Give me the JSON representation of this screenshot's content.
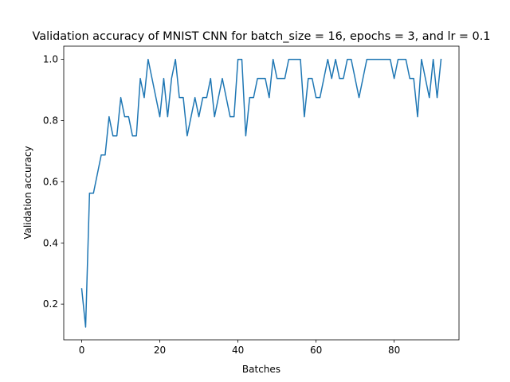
{
  "chart_data": {
    "type": "line",
    "title": "Validation accuracy of MNIST CNN for batch_size = 16, epochs = 3, and lr = 0.1",
    "xlabel": "Batches",
    "ylabel": "Validation accuracy",
    "xlim": [
      -4.6,
      96.6
    ],
    "ylim": [
      0.0833,
      1.0432
    ],
    "xticks": [
      0,
      20,
      40,
      60,
      80
    ],
    "yticks": [
      0.2,
      0.4,
      0.6,
      0.8,
      1.0
    ],
    "xtick_labels": [
      "0",
      "20",
      "40",
      "60",
      "80"
    ],
    "ytick_labels": [
      "0.2",
      "0.4",
      "0.6",
      "0.8",
      "1.0"
    ],
    "grid": false,
    "series": [
      {
        "color": "#1f77b4",
        "x": [
          0,
          1,
          2,
          3,
          4,
          5,
          6,
          7,
          8,
          9,
          10,
          11,
          12,
          13,
          14,
          15,
          16,
          17,
          18,
          19,
          20,
          21,
          22,
          23,
          24,
          25,
          26,
          27,
          28,
          29,
          30,
          31,
          32,
          33,
          34,
          35,
          36,
          37,
          38,
          39,
          40,
          41,
          42,
          43,
          44,
          45,
          46,
          47,
          48,
          49,
          50,
          51,
          52,
          53,
          54,
          55,
          56,
          57,
          58,
          59,
          60,
          61,
          62,
          63,
          64,
          65,
          66,
          67,
          68,
          69,
          70,
          71,
          72,
          73,
          74,
          75,
          76,
          77,
          78,
          79,
          80,
          81,
          82,
          83,
          84,
          85,
          86,
          87,
          88,
          89,
          90,
          91,
          92
        ],
        "values": [
          0.25,
          0.125,
          0.5625,
          0.5625,
          0.625,
          0.6875,
          0.6875,
          0.8125,
          0.75,
          0.75,
          0.875,
          0.8125,
          0.8125,
          0.75,
          0.75,
          0.9375,
          0.875,
          1.0,
          0.9375,
          0.875,
          0.8125,
          0.9375,
          0.8125,
          0.9375,
          1.0,
          0.875,
          0.875,
          0.75,
          0.8125,
          0.875,
          0.8125,
          0.875,
          0.875,
          0.9375,
          0.8125,
          0.875,
          0.9375,
          0.875,
          0.8125,
          0.8125,
          1.0,
          1.0,
          0.75,
          0.875,
          0.875,
          0.9375,
          0.9375,
          0.9375,
          0.875,
          1.0,
          0.9375,
          0.9375,
          0.9375,
          1.0,
          1.0,
          1.0,
          1.0,
          0.8125,
          0.9375,
          0.9375,
          0.875,
          0.875,
          0.9375,
          1.0,
          0.9375,
          1.0,
          0.9375,
          0.9375,
          1.0,
          1.0,
          0.9375,
          0.875,
          0.9375,
          1.0,
          1.0,
          1.0,
          1.0,
          1.0,
          1.0,
          1.0,
          0.9375,
          1.0,
          1.0,
          1.0,
          0.9375,
          0.9375,
          0.8125,
          1.0,
          0.9375,
          0.875,
          1.0,
          0.875,
          1.0
        ]
      }
    ]
  }
}
